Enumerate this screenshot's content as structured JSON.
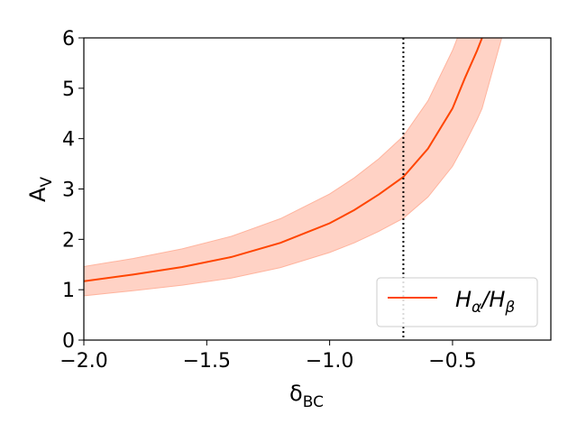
{
  "chart_data": {
    "type": "line",
    "title": "",
    "xlabel": "δ",
    "xlabel_sub": "BC",
    "ylabel": "A",
    "ylabel_sub": "V",
    "xlim": [
      -2.0,
      -0.1
    ],
    "ylim": [
      0,
      6
    ],
    "xticks": [
      -2.0,
      -1.5,
      -1.0,
      -0.5
    ],
    "xtick_labels": [
      "−2.0",
      "−1.5",
      "−1.0",
      "−0.5"
    ],
    "yticks": [
      0,
      1,
      2,
      3,
      4,
      5,
      6
    ],
    "ytick_labels": [
      "0",
      "1",
      "2",
      "3",
      "4",
      "5",
      "6"
    ],
    "grid": false,
    "legend_position": "lower-right",
    "vline": {
      "x": -0.7,
      "style": "dotted",
      "color": "#000000"
    },
    "series": [
      {
        "name": "Hα/Hβ",
        "legend_main_1": "H",
        "legend_sub_1": "α",
        "legend_slash": "/",
        "legend_main_2": "H",
        "legend_sub_2": "β",
        "color": "#ff4500",
        "band_color": "#ffb49e",
        "x": [
          -2.0,
          -1.8,
          -1.6,
          -1.4,
          -1.2,
          -1.0,
          -0.9,
          -0.8,
          -0.7,
          -0.6,
          -0.5,
          -0.45,
          -0.4,
          -0.38
        ],
        "y": [
          1.17,
          1.3,
          1.45,
          1.65,
          1.93,
          2.32,
          2.58,
          2.89,
          3.24,
          3.8,
          4.6,
          5.2,
          5.75,
          6.0
        ],
        "lower": [
          0.88,
          0.98,
          1.09,
          1.23,
          1.44,
          1.74,
          1.93,
          2.16,
          2.42,
          2.84,
          3.45,
          3.9,
          4.38,
          4.6
        ],
        "upper": [
          1.46,
          1.62,
          1.81,
          2.06,
          2.41,
          2.9,
          3.22,
          3.6,
          4.05,
          4.75,
          5.75,
          6.0,
          6.0,
          6.0
        ],
        "upper_x_end": -0.48,
        "lower_x_end": -0.3
      }
    ]
  }
}
